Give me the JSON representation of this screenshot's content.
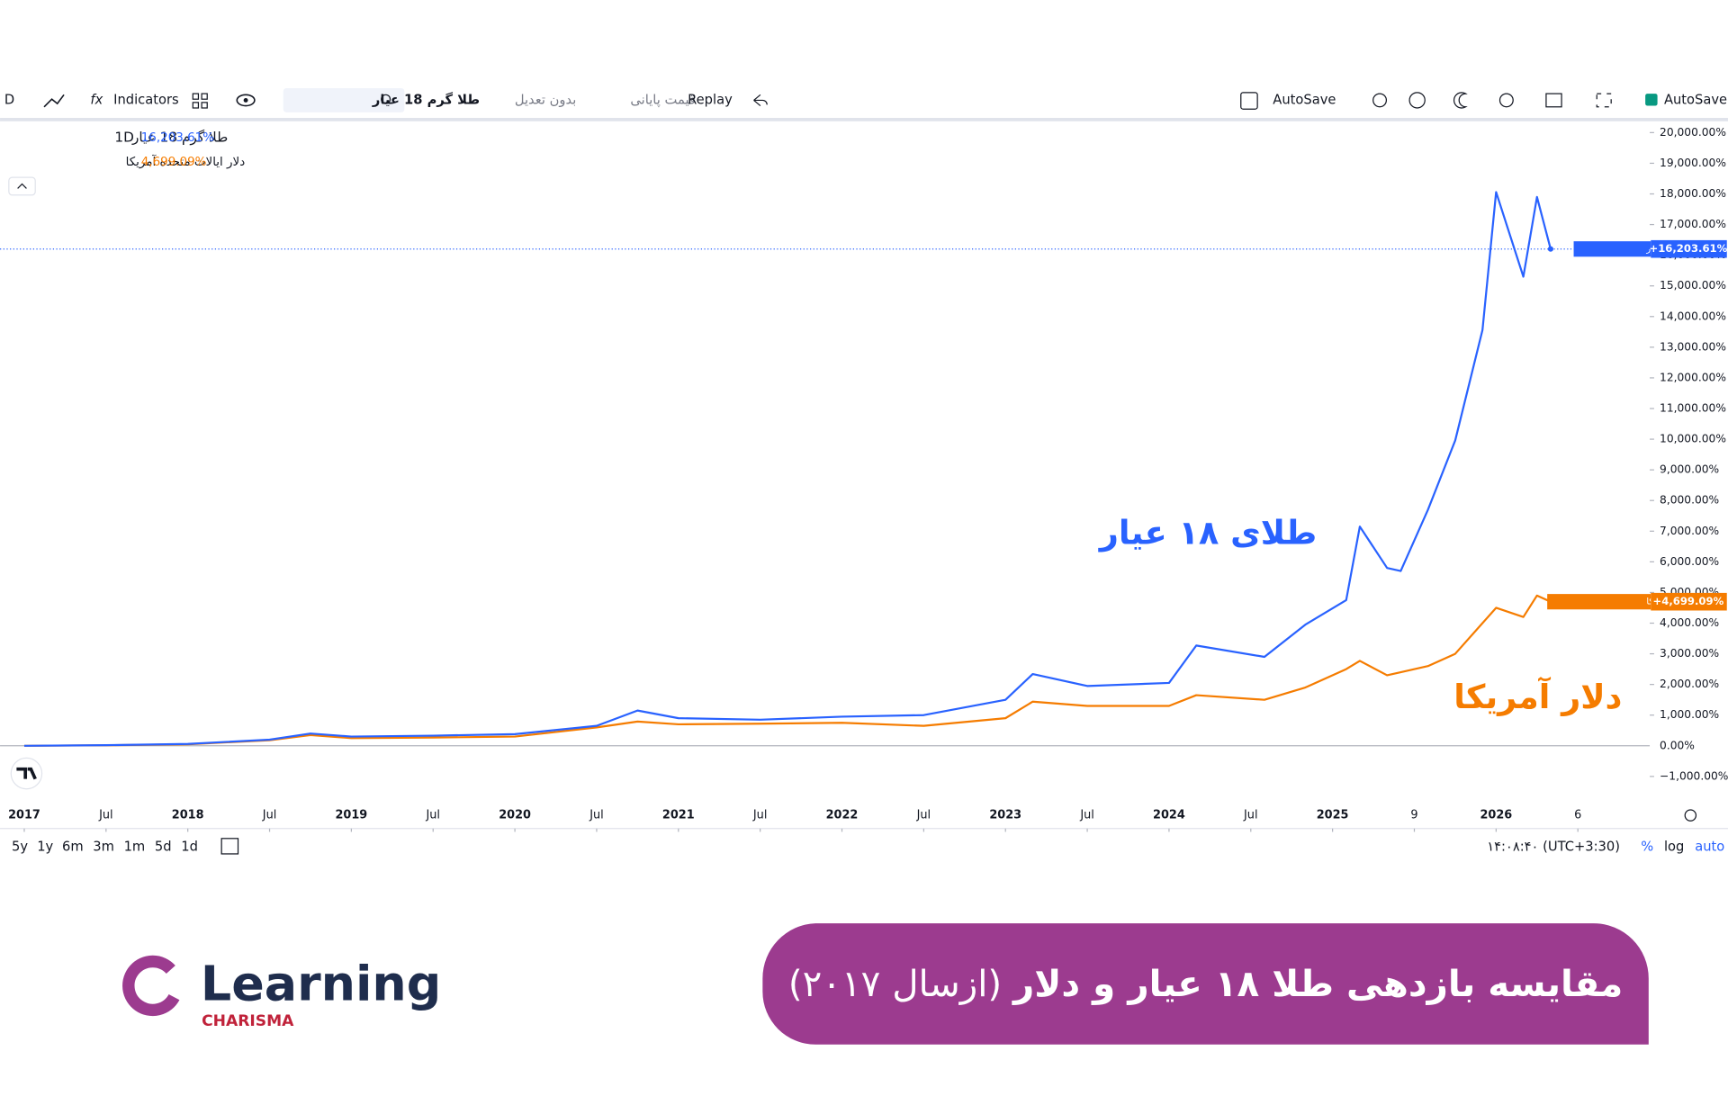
{
  "toolbar": {
    "interval": "D",
    "indicators": "Indicators",
    "symbol": "طلا گرم 18 عیار",
    "adjust": "بدون تعدیل",
    "price_type": "قیمت پایانی",
    "replay": "Replay",
    "autosave": "AutoSave",
    "autosave_check": "AutoSave"
  },
  "chart_data": {
    "type": "line",
    "interval": "1D",
    "x": [
      "2017-01",
      "2017-07",
      "2018-01",
      "2018-07",
      "2018-10",
      "2019-01",
      "2019-07",
      "2020-01",
      "2020-07",
      "2020-10",
      "2021-01",
      "2021-07",
      "2022-01",
      "2022-07",
      "2023-01",
      "2023-03",
      "2023-07",
      "2024-01",
      "2024-03",
      "2024-08",
      "2024-11",
      "2025-02",
      "2025-03",
      "2025-05",
      "2025-06",
      "2025-08",
      "2025-10",
      "2025-12",
      "2026-01",
      "2026-03",
      "2026-04",
      "2026-05"
    ],
    "series": [
      {
        "name": "طلا گرم 18 عیار",
        "color": "#2962ff",
        "last_label": "16,203.61%",
        "tag_label": "+16,203.61%",
        "values": [
          0,
          20,
          60,
          200,
          400,
          300,
          330,
          380,
          650,
          1150,
          900,
          850,
          950,
          1000,
          1500,
          2340,
          1950,
          2050,
          3270,
          2900,
          3950,
          4750,
          7150,
          5800,
          5700,
          7700,
          9960,
          13560,
          18060,
          15300,
          17900,
          16203.61
        ]
      },
      {
        "name": "دلار ایالات متحده آمریکا",
        "color": "#f57c00",
        "last_label": "4,699.09%",
        "tag_label": "+4,699.09%",
        "values": [
          0,
          15,
          50,
          180,
          350,
          250,
          270,
          300,
          600,
          790,
          700,
          720,
          750,
          650,
          900,
          1440,
          1300,
          1300,
          1650,
          1500,
          1900,
          2500,
          2770,
          2300,
          2400,
          2600,
          3000,
          4000,
          4500,
          4200,
          4900,
          4699.09
        ]
      }
    ],
    "annotations": [
      "طلای ۱۸ عیار",
      "دلار آمریکا"
    ],
    "ylim": [
      -1550,
      20300
    ],
    "yticks": [
      {
        "value": -1000,
        "label": "−1,000.00%"
      },
      {
        "value": 0,
        "label": "0.00%"
      },
      {
        "value": 1000,
        "label": "1,000.00%"
      },
      {
        "value": 2000,
        "label": "2,000.00%"
      },
      {
        "value": 3000,
        "label": "3,000.00%"
      },
      {
        "value": 4000,
        "label": "4,000.00%"
      },
      {
        "value": 5000,
        "label": "5,000.00%"
      },
      {
        "value": 6000,
        "label": "6,000.00%"
      },
      {
        "value": 7000,
        "label": "7,000.00%"
      },
      {
        "value": 8000,
        "label": "8,000.00%"
      },
      {
        "value": 9000,
        "label": "9,000.00%"
      },
      {
        "value": 10000,
        "label": "10,000.00%"
      },
      {
        "value": 11000,
        "label": "11,000.00%"
      },
      {
        "value": 12000,
        "label": "12,000.00%"
      },
      {
        "value": 13000,
        "label": "13,000.00%"
      },
      {
        "value": 14000,
        "label": "14,000.00%"
      },
      {
        "value": 15000,
        "label": "15,000.00%"
      },
      {
        "value": 16000,
        "label": "16,000.00%"
      },
      {
        "value": 17000,
        "label": "17,000.00%"
      },
      {
        "value": 18000,
        "label": "18,000.00%"
      },
      {
        "value": 19000,
        "label": "19,000.00%"
      },
      {
        "value": 20000,
        "label": "20,000.00%"
      }
    ],
    "xticks": [
      {
        "value": "2017-01",
        "label": "2017"
      },
      {
        "value": "2017-07",
        "label": "Jul"
      },
      {
        "value": "2018-01",
        "label": "2018"
      },
      {
        "value": "2018-07",
        "label": "Jul"
      },
      {
        "value": "2019-01",
        "label": "2019"
      },
      {
        "value": "2019-07",
        "label": "Jul"
      },
      {
        "value": "2020-01",
        "label": "2020"
      },
      {
        "value": "2020-07",
        "label": "Jul"
      },
      {
        "value": "2021-01",
        "label": "2021"
      },
      {
        "value": "2021-07",
        "label": "Jul"
      },
      {
        "value": "2022-01",
        "label": "2022"
      },
      {
        "value": "2022-07",
        "label": "Jul"
      },
      {
        "value": "2023-01",
        "label": "2023"
      },
      {
        "value": "2023-07",
        "label": "Jul"
      },
      {
        "value": "2024-01",
        "label": "2024"
      },
      {
        "value": "2024-07",
        "label": "Jul"
      },
      {
        "value": "2025-01",
        "label": "2025"
      },
      {
        "value": "2025-07",
        "label": "9"
      },
      {
        "value": "2026-01",
        "label": "2026"
      },
      {
        "value": "2026-07",
        "label": "6"
      }
    ]
  },
  "bottom_bar": {
    "ranges": [
      "5y",
      "1y",
      "6m",
      "3m",
      "1m",
      "5d",
      "1d"
    ],
    "clock": "۱۴:۰۸:۴۰ (UTC+3:30)",
    "percent": "%",
    "log": "log",
    "auto": "auto"
  },
  "banner": {
    "title": "مقایسه بازدهی طلا ۱۸ عیار و دلار",
    "subtitle": "(ازسال ۲۰۱۷)"
  },
  "logo": {
    "name": "Learning",
    "tagline": "CHARISMA"
  }
}
